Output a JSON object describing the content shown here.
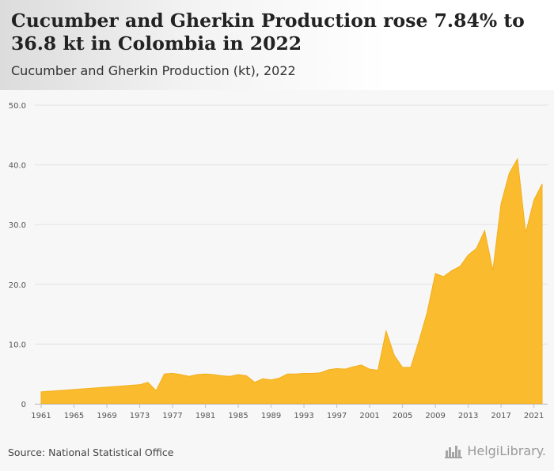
{
  "header": {
    "title": "Cucumber and Gherkin Production rose 7.84% to 36.8 kt in Colombia in 2022",
    "subtitle": "Cucumber and Gherkin Production (kt), 2022"
  },
  "footer": {
    "source": "Source: National Statistical Office",
    "logo_text": "HelgiLibrary."
  },
  "colors": {
    "fill": "#FABC2E",
    "stroke": "#F2AE17",
    "grid": "#e2e2e2",
    "axis_text": "#555555"
  },
  "chart_data": {
    "type": "area",
    "title": "Cucumber and Gherkin Production (kt), 2022",
    "xlabel": "",
    "ylabel": "",
    "xlim": [
      1961,
      2022
    ],
    "ylim": [
      0,
      50
    ],
    "grid": true,
    "yticks": [
      0,
      10,
      20,
      30,
      40,
      50
    ],
    "ytick_labels": [
      "0",
      "10.0",
      "20.0",
      "30.0",
      "40.0",
      "50.0"
    ],
    "xticks": [
      1961,
      1965,
      1969,
      1973,
      1977,
      1981,
      1985,
      1989,
      1993,
      1997,
      2001,
      2005,
      2009,
      2013,
      2017,
      2021
    ],
    "xtick_labels": [
      "1961",
      "1965",
      "1969",
      "1973",
      "1977",
      "1981",
      "1985",
      "1989",
      "1993",
      "1997",
      "2001",
      "2005",
      "2009",
      "2013",
      "2017",
      "2021"
    ],
    "x": [
      1961,
      1962,
      1963,
      1964,
      1965,
      1966,
      1967,
      1968,
      1969,
      1970,
      1971,
      1972,
      1973,
      1974,
      1975,
      1976,
      1977,
      1978,
      1979,
      1980,
      1981,
      1982,
      1983,
      1984,
      1985,
      1986,
      1987,
      1988,
      1989,
      1990,
      1991,
      1992,
      1993,
      1994,
      1995,
      1996,
      1997,
      1998,
      1999,
      2000,
      2001,
      2002,
      2003,
      2004,
      2005,
      2006,
      2007,
      2008,
      2009,
      2010,
      2011,
      2012,
      2013,
      2014,
      2015,
      2016,
      2017,
      2018,
      2019,
      2020,
      2021,
      2022
    ],
    "values": [
      2.0,
      2.1,
      2.2,
      2.3,
      2.4,
      2.5,
      2.6,
      2.7,
      2.8,
      2.9,
      3.0,
      3.1,
      3.2,
      3.6,
      2.2,
      5.0,
      5.1,
      4.9,
      4.6,
      4.9,
      5.0,
      4.9,
      4.7,
      4.6,
      4.9,
      4.7,
      3.6,
      4.2,
      4.0,
      4.3,
      5.0,
      5.0,
      5.1,
      5.1,
      5.2,
      5.7,
      5.9,
      5.8,
      6.2,
      6.5,
      5.8,
      5.6,
      12.2,
      8.1,
      6.1,
      6.1,
      10.5,
      15.3,
      21.8,
      21.3,
      22.3,
      23.0,
      24.9,
      26.0,
      29.0,
      22.3,
      33.5,
      38.6,
      41.0,
      28.6,
      34.1,
      36.8
    ]
  }
}
